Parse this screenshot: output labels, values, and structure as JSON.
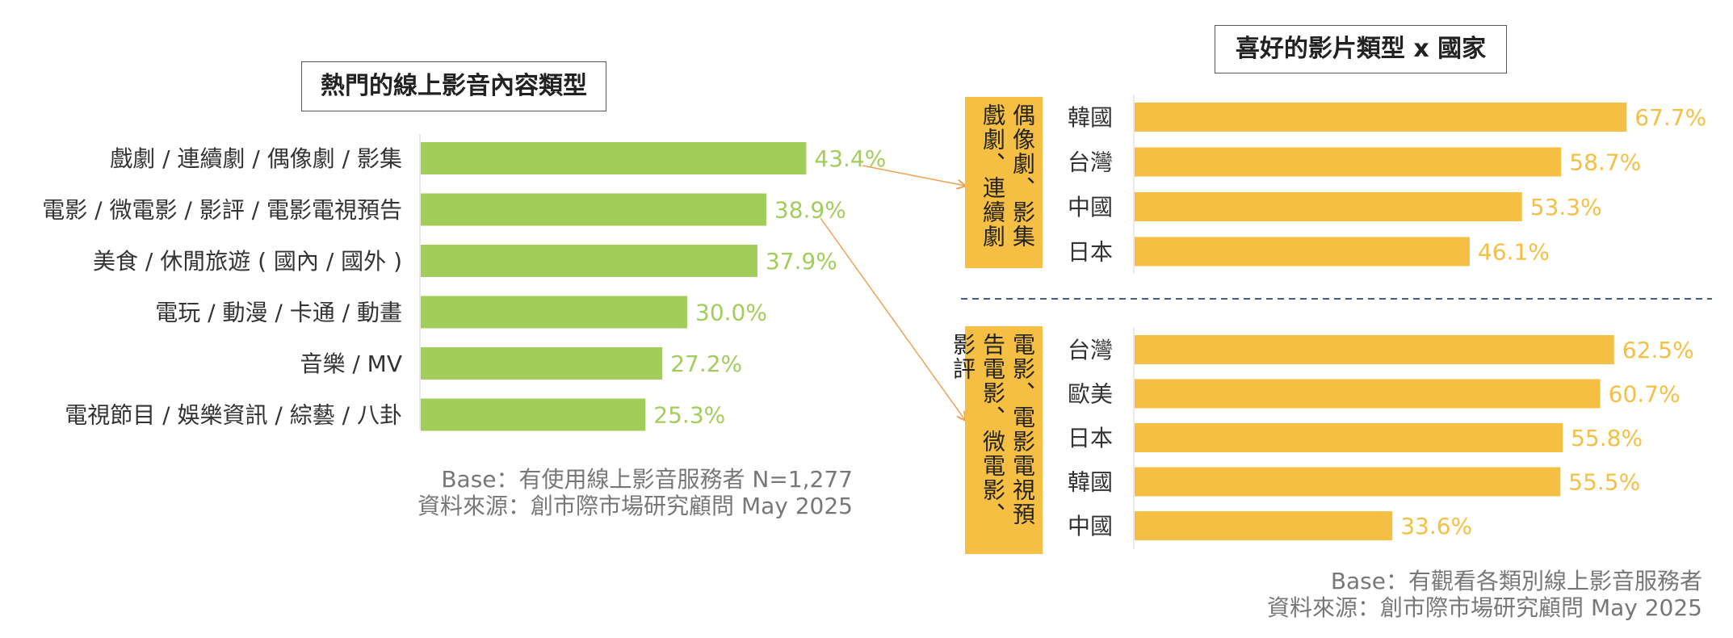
{
  "colors": {
    "green": "#a2cd5a",
    "gold": "#f4bf42",
    "arrow": "#f0a050",
    "divider": "#4a5a8a"
  },
  "left": {
    "title": "熱門的線上影音內容類型",
    "base": "Base：有使用線上影音服務者 N=1,277",
    "source": "資料來源：創市際市場研究顧問 May 2025"
  },
  "right": {
    "title": "喜好的影片類型 x 國家",
    "group1_label": "偶像劇、影集戲劇、連續劇",
    "group2_label": "電影、電影電視預告電影、微電影、影評",
    "base": "Base：有觀看各類別線上影音服務者",
    "source": "資料來源：創市際市場研究顧問 May 2025"
  },
  "chart_data": [
    {
      "type": "bar",
      "orientation": "horizontal",
      "categories": [
        "戲劇 / 連續劇 / 偶像劇 / 影集",
        "電影 / 微電影 / 影評 / 電影電視預告",
        "美食 / 休閒旅遊 ( 國內 / 國外 )",
        "電玩 / 動漫 / 卡通 / 動畫",
        "音樂 / MV",
        "電視節目 / 娛樂資訊 / 綜藝 / 八卦"
      ],
      "values": [
        43.4,
        38.9,
        37.9,
        30.0,
        27.2,
        25.3
      ],
      "labels": [
        "43.4%",
        "38.9%",
        "37.9%",
        "30.0%",
        "27.2%",
        "25.3%"
      ],
      "title": "熱門的線上影音內容類型",
      "color": "#a2cd5a"
    },
    {
      "type": "bar",
      "orientation": "horizontal",
      "group": "偶像劇、影集戲劇、連續劇",
      "categories": [
        "韓國",
        "台灣",
        "中國",
        "日本"
      ],
      "values": [
        67.7,
        58.7,
        53.3,
        46.1
      ],
      "labels": [
        "67.7%",
        "58.7%",
        "53.3%",
        "46.1%"
      ],
      "color": "#f4bf42"
    },
    {
      "type": "bar",
      "orientation": "horizontal",
      "group": "電影、電影電視預告電影、微電影、影評",
      "categories": [
        "台灣",
        "歐美",
        "日本",
        "韓國",
        "中國"
      ],
      "values": [
        62.5,
        60.7,
        55.8,
        55.5,
        33.6
      ],
      "labels": [
        "62.5%",
        "60.7%",
        "55.8%",
        "55.5%",
        "33.6%"
      ],
      "color": "#f4bf42"
    }
  ]
}
